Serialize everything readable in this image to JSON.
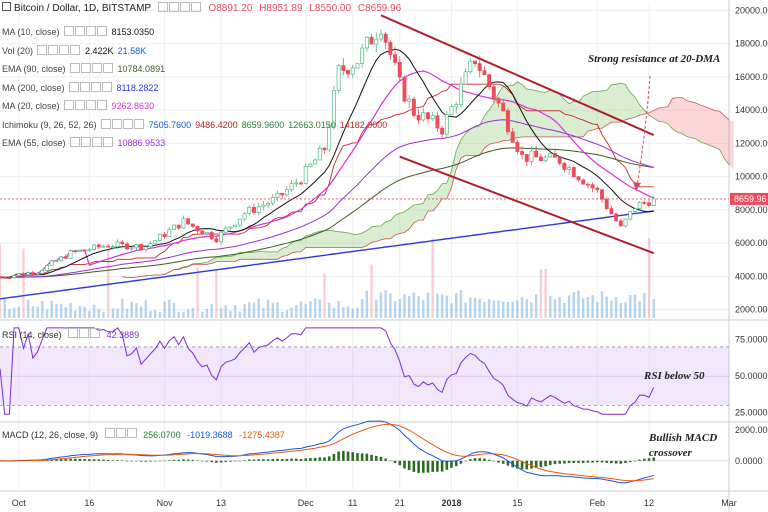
{
  "header": {
    "title": "Bitcoin / Dollar, 1D, BITSTAMP",
    "ohlc": {
      "open": "O8891.20",
      "high": "H8951.89",
      "low": "L8550.00",
      "close": "C8659.96"
    }
  },
  "indicators": [
    {
      "name": "MA (10, close)",
      "values": [
        "8153.0350"
      ],
      "colors": [
        "#111111"
      ]
    },
    {
      "name": "Vol (20)",
      "values": [
        "2.422K",
        "21.58K"
      ],
      "colors": [
        "#111111",
        "#1a56db"
      ]
    },
    {
      "name": "EMA (90, close)",
      "values": [
        "10784.0891"
      ],
      "colors": [
        "#3d5c1f"
      ]
    },
    {
      "name": "MA (200, close)",
      "values": [
        "8118.2822"
      ],
      "colors": [
        "#2b3bd6"
      ]
    },
    {
      "name": "MA (20, close)",
      "values": [
        "9262.8630"
      ],
      "colors": [
        "#d633d6"
      ]
    },
    {
      "name": "Ichimoku (9, 26, 52, 26)",
      "values": [
        "7505.7600",
        "9486.4200",
        "8659.9600",
        "12663.0150",
        "14182.0000"
      ],
      "colors": [
        "#1a56db",
        "#b22222",
        "#2e7d32",
        "#2e7d32",
        "#c62828"
      ]
    },
    {
      "name": "EMA (55, close)",
      "values": [
        "10886.9533"
      ],
      "colors": [
        "#9b30d9"
      ]
    }
  ],
  "rsi_legend": {
    "name": "RSI (14, close)",
    "value": "42.3889"
  },
  "macd_legend": {
    "name": "MACD (12, 26, close, 9)",
    "values": [
      "256.0700",
      "-1019.3688",
      "-1275.4387"
    ],
    "colors": [
      "#2e7d32",
      "#1a56db",
      "#e8590c"
    ]
  },
  "annotations": {
    "resistance": "Strong resistance at 20-DMA",
    "rsi": "RSI below 50",
    "macd": "Bullish MACD crossover"
  },
  "price_axis": {
    "ticks": [
      "20000.00",
      "18000.00",
      "16000.00",
      "14000.00",
      "12000.00",
      "10000.00",
      "8000.00",
      "6000.00",
      "4000.00",
      "2000.00"
    ],
    "last_label": "8659.96"
  },
  "rsi_axis": {
    "ticks": [
      "75.0000",
      "50.0000",
      "25.0000"
    ]
  },
  "macd_axis": {
    "ticks": [
      "2000.0000",
      "0.0000"
    ]
  },
  "x_axis": {
    "labels": [
      "Oct",
      "16",
      "Nov",
      "13",
      "Dec",
      "11",
      "21",
      "2018",
      "15",
      "Feb",
      "12",
      "Mar"
    ]
  },
  "colors": {
    "up": "#53b987",
    "down": "#eb4d5c",
    "ma10": "#111111",
    "ma20": "#d633d6",
    "ma200": "#2b3bd6",
    "ema90": "#3d5c1f",
    "channel": "#b01e2a"
  },
  "chart_data": {
    "type": "candlestick",
    "title": "Bitcoin / Dollar, 1D, BITSTAMP",
    "x_range": [
      "2017-09-27",
      "2018-03-01"
    ],
    "y_range": [
      1500,
      20500
    ],
    "last_price": 8659.96,
    "close_path": [
      {
        "date": "2017-09-27",
        "close": 3950
      },
      {
        "date": "2017-10-05",
        "close": 4300
      },
      {
        "date": "2017-10-12",
        "close": 5400
      },
      {
        "date": "2017-10-20",
        "close": 5900
      },
      {
        "date": "2017-10-28",
        "close": 5800
      },
      {
        "date": "2017-11-05",
        "close": 7300
      },
      {
        "date": "2017-11-12",
        "close": 6300
      },
      {
        "date": "2017-11-18",
        "close": 7800
      },
      {
        "date": "2017-11-25",
        "close": 8700
      },
      {
        "date": "2017-11-30",
        "close": 9900
      },
      {
        "date": "2017-12-05",
        "close": 11700
      },
      {
        "date": "2017-12-08",
        "close": 16300
      },
      {
        "date": "2017-12-12",
        "close": 17000
      },
      {
        "date": "2017-12-17",
        "close": 19200
      },
      {
        "date": "2017-12-21",
        "close": 15500
      },
      {
        "date": "2017-12-24",
        "close": 13900
      },
      {
        "date": "2017-12-30",
        "close": 12900
      },
      {
        "date": "2018-01-06",
        "close": 17100
      },
      {
        "date": "2018-01-12",
        "close": 13800
      },
      {
        "date": "2018-01-16",
        "close": 11200
      },
      {
        "date": "2018-01-24",
        "close": 11000
      },
      {
        "date": "2018-02-01",
        "close": 9100
      },
      {
        "date": "2018-02-06",
        "close": 6900
      },
      {
        "date": "2018-02-09",
        "close": 8200
      },
      {
        "date": "2018-02-13",
        "close": 8660
      }
    ],
    "series": [
      {
        "name": "MA (10, close)",
        "last": 8153.035
      },
      {
        "name": "EMA (90, close)",
        "last": 10784.0891
      },
      {
        "name": "MA (200, close)",
        "last": 8118.2822
      },
      {
        "name": "MA (20, close)",
        "last": 9262.863
      },
      {
        "name": "EMA (55, close)",
        "last": 10886.9533
      }
    ],
    "rsi": {
      "last": 42.3889,
      "levels": [
        30,
        70
      ],
      "y_range": [
        20,
        85
      ]
    },
    "macd": {
      "macd": -1019.3688,
      "signal": -1275.4387,
      "histogram": 256.07
    },
    "trend_channel": {
      "upper": [
        [
          "2017-12-17",
          19700
        ],
        [
          "2018-02-13",
          12500
        ]
      ],
      "lower": [
        [
          "2017-12-21",
          11200
        ],
        [
          "2018-02-13",
          5400
        ]
      ]
    }
  }
}
